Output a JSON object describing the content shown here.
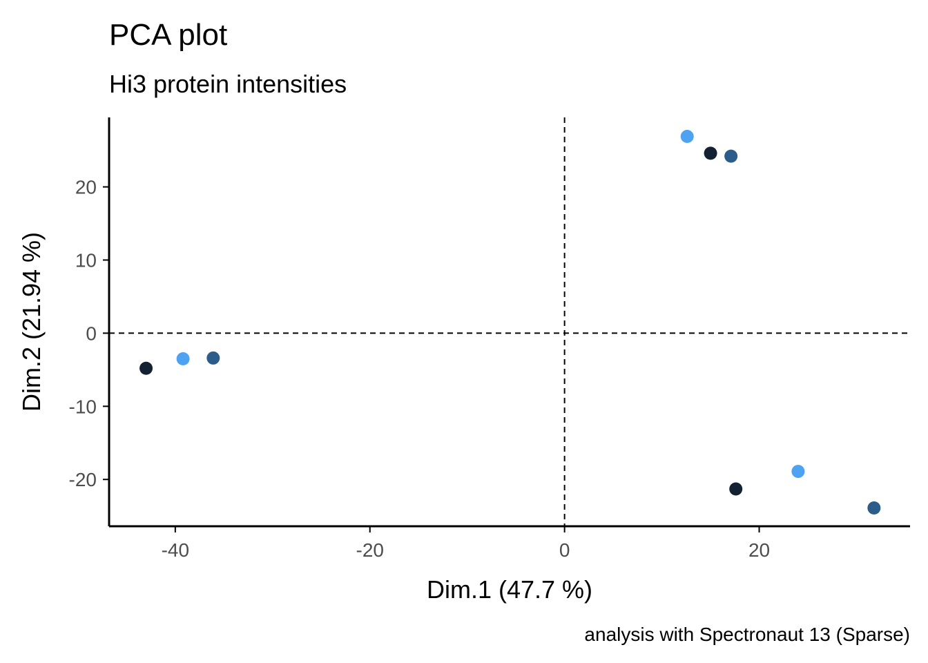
{
  "chart_data": {
    "type": "scatter",
    "title": "PCA plot",
    "subtitle": "Hi3 protein intensities",
    "xlabel": "Dim.1 (47.7 %)",
    "ylabel": "Dim.2 (21.94 %)",
    "caption": "analysis with Spectronaut 13 (Sparse)",
    "xlim": [
      -46.8,
      35.5
    ],
    "ylim": [
      -26.4,
      29.5
    ],
    "xticks": [
      -40,
      -20,
      0,
      20
    ],
    "yticks": [
      -20,
      -10,
      0,
      10,
      20
    ],
    "reference_lines": {
      "x": 0,
      "y": 0,
      "style": "dashed"
    },
    "grid": false,
    "legend": "none",
    "points": [
      {
        "x": 12.6,
        "y": 26.9,
        "color": "#4da3f2"
      },
      {
        "x": 15.0,
        "y": 24.6,
        "color": "#132133"
      },
      {
        "x": 17.1,
        "y": 24.2,
        "color": "#2c5c8a"
      },
      {
        "x": -43.0,
        "y": -4.8,
        "color": "#132133"
      },
      {
        "x": -39.2,
        "y": -3.5,
        "color": "#4da3f2"
      },
      {
        "x": -36.1,
        "y": -3.4,
        "color": "#2c5c8a"
      },
      {
        "x": 24.0,
        "y": -18.9,
        "color": "#4da3f2"
      },
      {
        "x": 17.6,
        "y": -21.3,
        "color": "#132133"
      },
      {
        "x": 31.8,
        "y": -23.9,
        "color": "#2c5c8a"
      }
    ]
  }
}
